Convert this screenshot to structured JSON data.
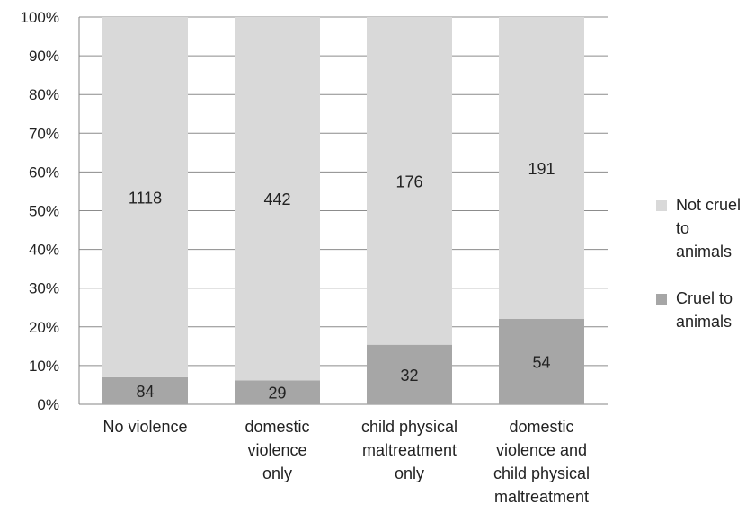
{
  "chart_data": {
    "type": "bar",
    "stacked": true,
    "normalized": true,
    "categories": [
      [
        "No violence"
      ],
      [
        "domestic",
        "violence",
        "only"
      ],
      [
        "child physical",
        "maltreatment",
        "only"
      ],
      [
        "domestic",
        "violence and",
        "child physical",
        "maltreatment"
      ]
    ],
    "series": [
      {
        "name": "Cruel to animals",
        "values": [
          84,
          29,
          32,
          54
        ],
        "color": "#a6a6a6"
      },
      {
        "name": "Not cruel to animals",
        "values": [
          1118,
          442,
          176,
          191
        ],
        "color": "#d9d9d9"
      }
    ],
    "data_labels": {
      "Cruel to animals": [
        "84",
        "29",
        "32",
        "54"
      ],
      "Not cruel to animals": [
        "1118",
        "442",
        "176",
        "191"
      ]
    },
    "y_ticks": [
      "0%",
      "10%",
      "20%",
      "30%",
      "40%",
      "50%",
      "60%",
      "70%",
      "80%",
      "90%",
      "100%"
    ],
    "ylim": [
      0,
      100
    ],
    "grid": true,
    "legend_position": "right"
  },
  "legend": [
    {
      "label": "Not cruel\nto animals",
      "color": "#d9d9d9"
    },
    {
      "label": "Cruel to\nanimals",
      "color": "#a6a6a6"
    }
  ]
}
